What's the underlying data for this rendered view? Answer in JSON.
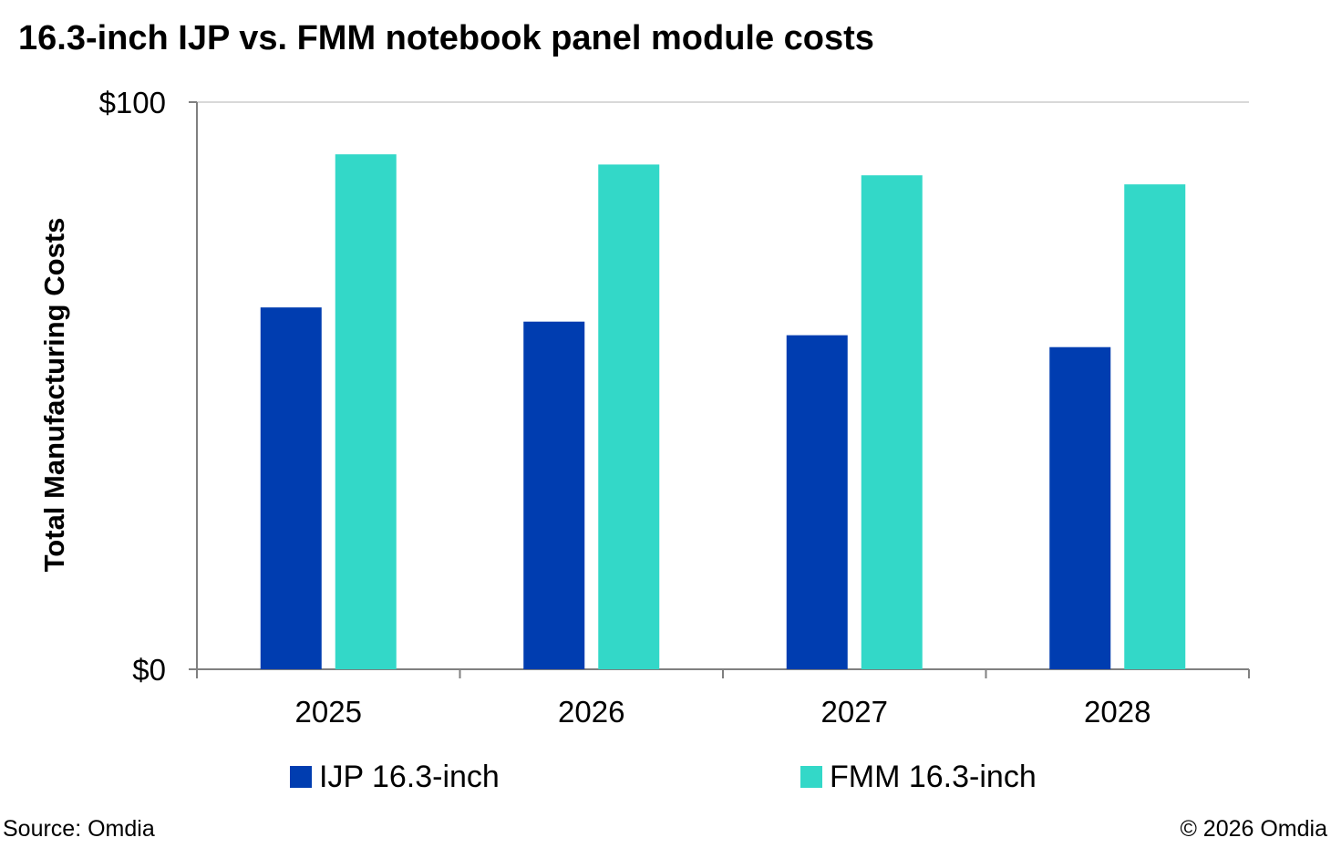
{
  "chart_data": {
    "type": "bar",
    "title": "16.3-inch IJP vs. FMM notebook panel module costs",
    "ylabel": "Total Manufacturing Costs",
    "xlabel": "",
    "categories": [
      "2025",
      "2026",
      "2027",
      "2028"
    ],
    "series": [
      {
        "name": "IJP 16.3-inch",
        "color": "#003DB0",
        "values": [
          63.8,
          61.3,
          58.9,
          56.8
        ]
      },
      {
        "name": "FMM 16.3-inch",
        "color": "#33D8C8",
        "values": [
          90.8,
          89.0,
          87.1,
          85.5
        ]
      }
    ],
    "ylim": [
      0,
      100
    ],
    "y_tick_labels": [
      "$0",
      "$100"
    ],
    "grid": true,
    "legend_position": "bottom"
  },
  "footer": {
    "source": "Source: Omdia",
    "copyright": "© 2026 Omdia"
  }
}
